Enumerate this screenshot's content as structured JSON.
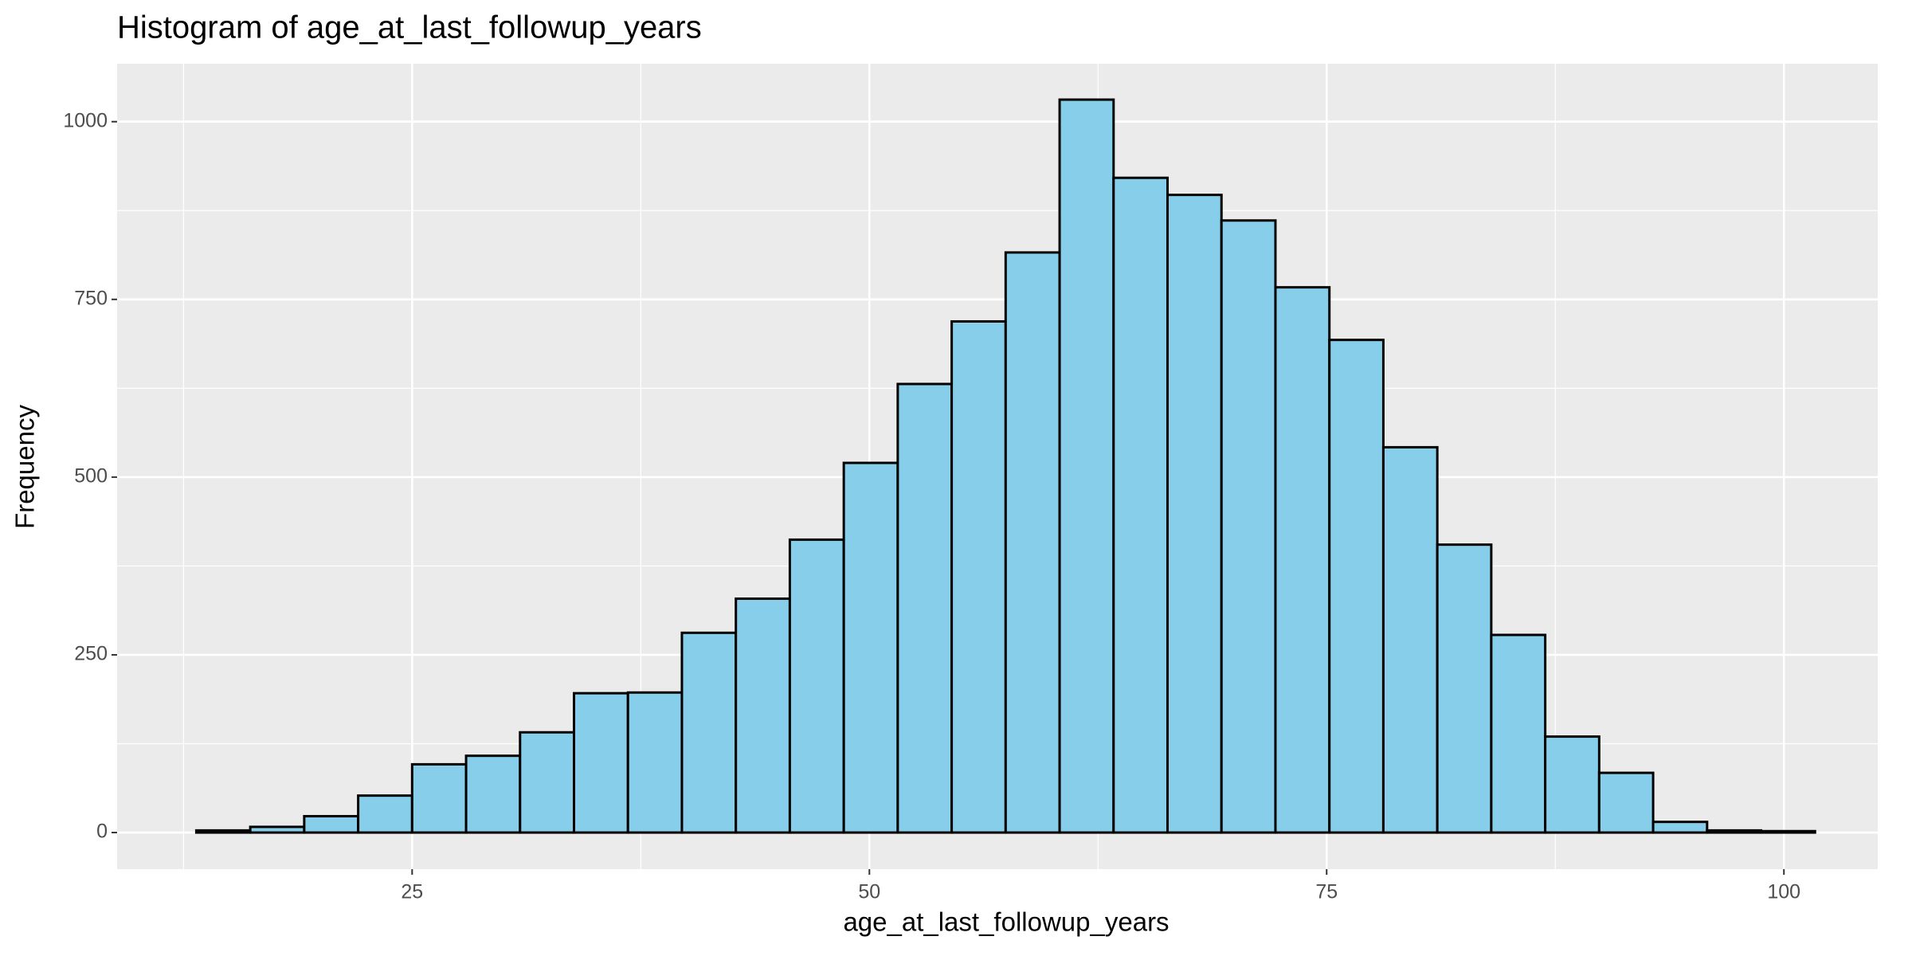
{
  "chart_data": {
    "type": "histogram",
    "title": "Histogram of age_at_last_followup_years",
    "x_label": "age_at_last_followup_years",
    "y_label": "Frequency",
    "bins": [
      13.2,
      16.15,
      19.1,
      22.05,
      25.0,
      27.95,
      30.9,
      33.85,
      36.8,
      39.75,
      42.7,
      45.65,
      48.6,
      51.55,
      54.5,
      57.45,
      60.4,
      63.35,
      66.3,
      69.25,
      72.2,
      75.15,
      78.1,
      81.05,
      84.0,
      86.95,
      89.9,
      92.85,
      95.8,
      98.75,
      101.7
    ],
    "values": [
      3,
      8,
      23,
      52,
      96,
      108,
      141,
      196,
      197,
      281,
      329,
      412,
      520,
      631,
      719,
      816,
      1031,
      921,
      897,
      861,
      767,
      693,
      542,
      405,
      278,
      135,
      84,
      15,
      3,
      2
    ],
    "color": "#87ceeb",
    "edge_color": "#000000",
    "xlim": [
      8.87,
      105.13
    ],
    "ylim": [
      -51.5,
      1081.5
    ],
    "xticks": [
      25,
      50,
      75,
      100
    ],
    "yticks": [
      0,
      250,
      500,
      750,
      1000
    ],
    "grid": true,
    "minor_grid": true
  }
}
